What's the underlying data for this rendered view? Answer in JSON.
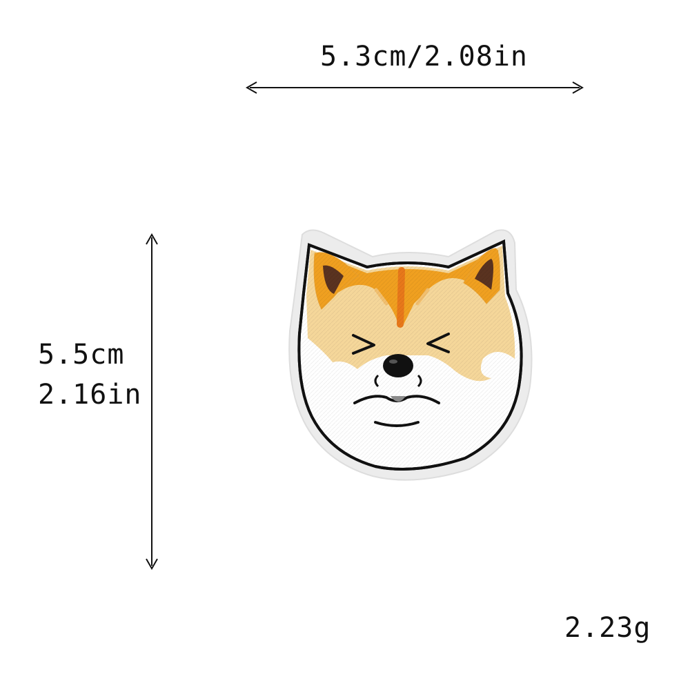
{
  "dimensions": {
    "width_text": "5.3cm/2.08in",
    "height_cm_text": "5.5cm",
    "height_in_text": "2.16in",
    "weight_text": "2.23g"
  },
  "product": {
    "subject": "embroidered shiba inu dog face patch"
  },
  "colors": {
    "ink": "#111111",
    "fur_orange": "#f0a020",
    "fur_cream": "#f5d79a",
    "stripe": "#e8781a",
    "inner_ear": "#5a3320",
    "patch_edge": "#ececec",
    "white_fur": "#ffffff"
  }
}
